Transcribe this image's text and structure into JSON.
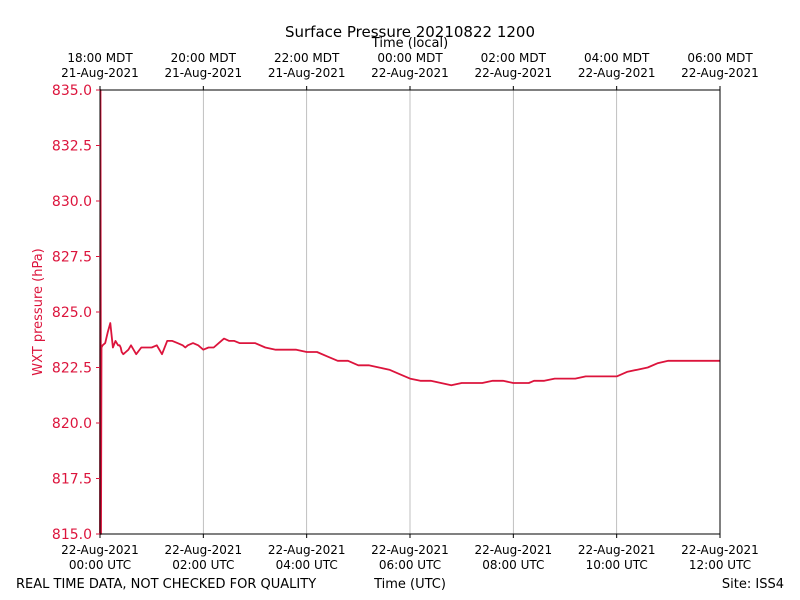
{
  "chart_data": {
    "type": "line",
    "title": "Surface Pressure 20210822 1200",
    "xlabel_top": "Time (local)",
    "xlabel": "Time (UTC)",
    "ylabel": "WXT pressure (hPa)",
    "ylim": [
      815.0,
      835.0
    ],
    "xlim_hours": [
      0,
      12
    ],
    "y_ticks": [
      "815.0",
      "817.5",
      "820.0",
      "822.5",
      "825.0",
      "827.5",
      "830.0",
      "832.5",
      "835.0"
    ],
    "x_ticks_bottom": [
      {
        "line1": "22-Aug-2021",
        "line2": "00:00 UTC"
      },
      {
        "line1": "22-Aug-2021",
        "line2": "02:00 UTC"
      },
      {
        "line1": "22-Aug-2021",
        "line2": "04:00 UTC"
      },
      {
        "line1": "22-Aug-2021",
        "line2": "06:00 UTC"
      },
      {
        "line1": "22-Aug-2021",
        "line2": "08:00 UTC"
      },
      {
        "line1": "22-Aug-2021",
        "line2": "10:00 UTC"
      },
      {
        "line1": "22-Aug-2021",
        "line2": "12:00 UTC"
      }
    ],
    "x_ticks_top": [
      {
        "line1": "18:00 MDT",
        "line2": "21-Aug-2021"
      },
      {
        "line1": "20:00 MDT",
        "line2": "21-Aug-2021"
      },
      {
        "line1": "22:00 MDT",
        "line2": "21-Aug-2021"
      },
      {
        "line1": "00:00 MDT",
        "line2": "22-Aug-2021"
      },
      {
        "line1": "02:00 MDT",
        "line2": "22-Aug-2021"
      },
      {
        "line1": "04:00 MDT",
        "line2": "22-Aug-2021"
      },
      {
        "line1": "06:00 MDT",
        "line2": "22-Aug-2021"
      }
    ],
    "grid": "vertical",
    "series": [
      {
        "color": "#dc143c",
        "x_hours": [
          0,
          0.01,
          0.02,
          0.03,
          0.05,
          0.1,
          0.15,
          0.2,
          0.25,
          0.3,
          0.35,
          0.38,
          0.4,
          0.42,
          0.45,
          0.5,
          0.55,
          0.6,
          0.7,
          0.8,
          0.9,
          1.0,
          1.1,
          1.2,
          1.3,
          1.4,
          1.5,
          1.6,
          1.65,
          1.7,
          1.8,
          1.9,
          2.0,
          2.1,
          2.2,
          2.3,
          2.4,
          2.5,
          2.6,
          2.7,
          2.8,
          3.0,
          3.2,
          3.4,
          3.6,
          3.8,
          4.0,
          4.2,
          4.4,
          4.6,
          4.8,
          5.0,
          5.2,
          5.4,
          5.6,
          5.8,
          6.0,
          6.2,
          6.4,
          6.6,
          6.8,
          7.0,
          7.2,
          7.4,
          7.6,
          7.8,
          8.0,
          8.2,
          8.3,
          8.4,
          8.6,
          8.8,
          9.0,
          9.2,
          9.4,
          9.6,
          9.8,
          10.0,
          10.2,
          10.4,
          10.6,
          10.8,
          11.0,
          11.2,
          11.4,
          11.6,
          11.8,
          12.0
        ],
        "values": [
          815.0,
          835.0,
          815.0,
          823.4,
          823.5,
          823.6,
          824.1,
          824.5,
          823.4,
          823.7,
          823.5,
          823.5,
          823.4,
          823.2,
          823.1,
          823.2,
          823.3,
          823.5,
          823.1,
          823.4,
          823.4,
          823.4,
          823.5,
          823.1,
          823.7,
          823.7,
          823.6,
          823.5,
          823.4,
          823.5,
          823.6,
          823.5,
          823.3,
          823.4,
          823.4,
          823.6,
          823.8,
          823.7,
          823.7,
          823.6,
          823.6,
          823.6,
          823.4,
          823.3,
          823.3,
          823.3,
          823.2,
          823.2,
          823.0,
          822.8,
          822.8,
          822.6,
          822.6,
          822.5,
          822.4,
          822.2,
          822.0,
          821.9,
          821.9,
          821.8,
          821.7,
          821.8,
          821.8,
          821.8,
          821.9,
          821.9,
          821.8,
          821.8,
          821.8,
          821.9,
          821.9,
          822.0,
          822.0,
          822.0,
          822.1,
          822.1,
          822.1,
          822.1,
          822.3,
          822.4,
          822.5,
          822.7,
          822.8,
          822.8,
          822.8,
          822.8,
          822.8,
          822.8
        ]
      }
    ]
  },
  "footer": {
    "left": "REAL TIME DATA, NOT CHECKED FOR QUALITY",
    "right": "Site: ISS4"
  }
}
